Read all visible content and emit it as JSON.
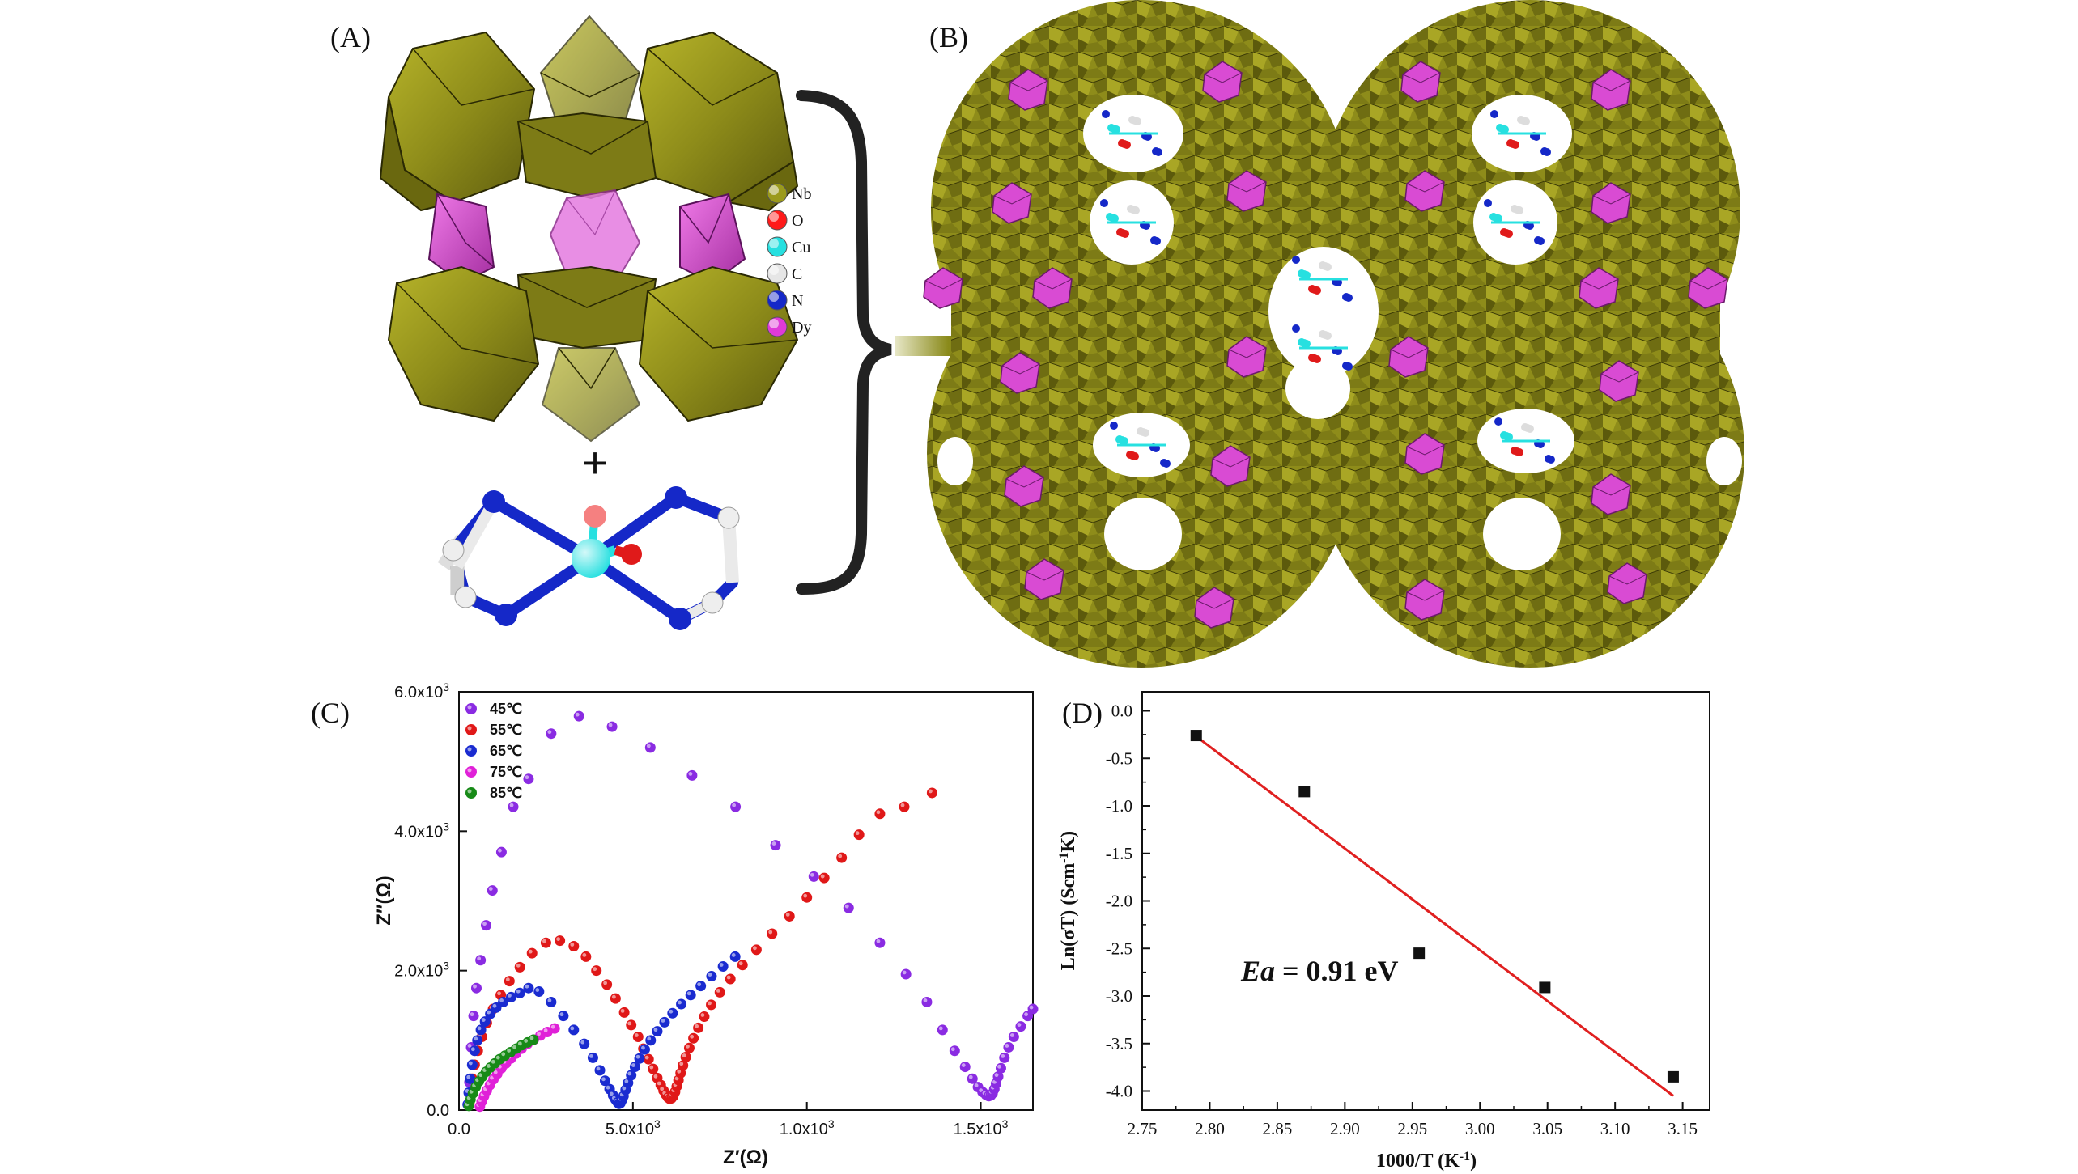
{
  "panels": {
    "A": "(A)",
    "B": "(B)",
    "C": "(C)",
    "D": "(D)"
  },
  "panel_a": {
    "plus": "+",
    "legend": [
      {
        "label": "Nb",
        "color": "#9b9a1c"
      },
      {
        "label": "O",
        "color": "#ff1a1a"
      },
      {
        "label": "Cu",
        "color": "#27e0e0"
      },
      {
        "label": "C",
        "color": "#e6e6e6"
      },
      {
        "label": "N",
        "color": "#1528c8"
      },
      {
        "label": "Dy",
        "color": "#e03ad8"
      }
    ]
  },
  "colors": {
    "nb_polyhedra": "#8e8c1a",
    "dy_polyhedra": "#d94bd3",
    "arrow": "#8a8a1a"
  },
  "chart_data": [
    {
      "type": "scatter",
      "xlabel": "Z′(Ω)",
      "ylabel": "Z″(Ω)",
      "xlim": [
        0,
        16500
      ],
      "ylim": [
        0,
        6000
      ],
      "xticks": [
        {
          "value": 0,
          "label": "0.0"
        },
        {
          "value": 5000,
          "label": "5.0x10"
        },
        {
          "value": 10000,
          "label": "1.0x10"
        },
        {
          "value": 15000,
          "label": "1.5x10"
        }
      ],
      "xtick_exponent": "3",
      "yticks": [
        {
          "value": 0,
          "label": "0.0"
        },
        {
          "value": 2000,
          "label": "2.0x10"
        },
        {
          "value": 4000,
          "label": "4.0x10"
        },
        {
          "value": 6000,
          "label": "6.0x10"
        }
      ],
      "ytick_exponent": "3",
      "legend_position": "top-left",
      "series": [
        {
          "name": "45℃",
          "color": "#8a2be2",
          "x": [
            300,
            350,
            420,
            500,
            620,
            780,
            960,
            1220,
            1560,
            2000,
            2650,
            3450,
            4400,
            5500,
            6700,
            7950,
            9100,
            10200,
            11200,
            12100,
            12850,
            13450,
            13900,
            14250,
            14550,
            14760,
            14920,
            15050,
            15150,
            15230,
            15290,
            15340,
            15390,
            15440,
            15500,
            15580,
            15680,
            15800,
            15950,
            16150,
            16350,
            16500
          ],
          "y": [
            400,
            900,
            1350,
            1750,
            2150,
            2650,
            3150,
            3700,
            4350,
            4750,
            5400,
            5650,
            5500,
            5200,
            4800,
            4350,
            3800,
            3350,
            2900,
            2400,
            1950,
            1550,
            1150,
            850,
            620,
            450,
            330,
            260,
            220,
            200,
            210,
            240,
            300,
            380,
            480,
            600,
            750,
            900,
            1050,
            1200,
            1350,
            1450
          ]
        },
        {
          "name": "55℃",
          "color": "#e01818",
          "x": [
            300,
            330,
            380,
            450,
            540,
            660,
            800,
            980,
            1200,
            1450,
            1750,
            2100,
            2500,
            2900,
            3300,
            3650,
            3950,
            4250,
            4500,
            4750,
            4950,
            5150,
            5300,
            5450,
            5580,
            5700,
            5800,
            5880,
            5950,
            6010,
            6060,
            6110,
            6160,
            6210,
            6260,
            6310,
            6370,
            6440,
            6520,
            6620,
            6740,
            6880,
            7050,
            7250,
            7500,
            7800,
            8150,
            8550,
            9000,
            9500,
            10000,
            10500,
            11000,
            11500,
            12100,
            12800,
            13600
          ],
          "y": [
            100,
            250,
            450,
            650,
            850,
            1050,
            1250,
            1450,
            1650,
            1850,
            2050,
            2250,
            2400,
            2430,
            2350,
            2200,
            2000,
            1800,
            1600,
            1400,
            1220,
            1050,
            880,
            730,
            590,
            460,
            360,
            280,
            220,
            180,
            160,
            170,
            200,
            260,
            340,
            430,
            530,
            640,
            760,
            890,
            1030,
            1180,
            1340,
            1510,
            1690,
            1880,
            2080,
            2300,
            2530,
            2780,
            3050,
            3330,
            3620,
            3950,
            4250,
            4350,
            4550
          ]
        },
        {
          "name": "65℃",
          "color": "#1a2bd0",
          "x": [
            250,
            280,
            320,
            380,
            450,
            530,
            630,
            750,
            900,
            1070,
            1270,
            1500,
            1750,
            2000,
            2300,
            2650,
            3000,
            3300,
            3600,
            3850,
            4050,
            4200,
            4330,
            4430,
            4500,
            4560,
            4600,
            4640,
            4680,
            4730,
            4790,
            4860,
            4950,
            5060,
            5190,
            5340,
            5510,
            5700,
            5910,
            6140,
            6390,
            6660,
            6950,
            7260,
            7590,
            7940
          ],
          "y": [
            80,
            250,
            450,
            650,
            850,
            1000,
            1150,
            1270,
            1380,
            1470,
            1550,
            1620,
            1680,
            1750,
            1700,
            1550,
            1350,
            1150,
            950,
            750,
            570,
            420,
            300,
            210,
            150,
            110,
            90,
            100,
            140,
            200,
            290,
            390,
            500,
            620,
            740,
            870,
            1000,
            1130,
            1260,
            1390,
            1520,
            1650,
            1780,
            1920,
            2060,
            2200
          ]
        },
        {
          "name": "75℃",
          "color": "#e020d8",
          "x": [
            600,
            650,
            720,
            800,
            890,
            990,
            1100,
            1220,
            1350,
            1490,
            1640,
            1800,
            1970,
            2150,
            2340,
            2540,
            2750
          ],
          "y": [
            50,
            120,
            200,
            280,
            360,
            440,
            520,
            600,
            670,
            740,
            810,
            880,
            950,
            1010,
            1070,
            1120,
            1170
          ]
        },
        {
          "name": "85℃",
          "color": "#178a17",
          "x": [
            280,
            330,
            400,
            480,
            570,
            670,
            780,
            900,
            1030,
            1170,
            1320,
            1480,
            1640,
            1800,
            1970,
            2140
          ],
          "y": [
            60,
            150,
            240,
            330,
            410,
            480,
            550,
            610,
            670,
            730,
            780,
            830,
            880,
            930,
            970,
            1010
          ]
        }
      ]
    },
    {
      "type": "scatter",
      "xlabel": "1000/T (K",
      "xlabel_sup": "-1",
      "xlabel_end": ")",
      "ylabel": "Ln(σT) (Scm",
      "ylabel_sup": "-1",
      "ylabel_end": "K)",
      "xlim": [
        2.75,
        3.17
      ],
      "ylim": [
        -4.2,
        0.2
      ],
      "xticks": [
        "2.75",
        "2.80",
        "2.85",
        "2.90",
        "2.95",
        "3.00",
        "3.05",
        "3.10",
        "3.15"
      ],
      "yticks": [
        "0.0",
        "-0.5",
        "-1.0",
        "-1.5",
        "-2.0",
        "-2.5",
        "-3.0",
        "-3.5",
        "-4.0"
      ],
      "points": {
        "x": [
          2.79,
          2.87,
          2.955,
          3.048,
          3.143
        ],
        "y": [
          -0.26,
          -0.85,
          -2.55,
          -2.91,
          -3.85
        ]
      },
      "fit_line": {
        "x": [
          2.79,
          3.143
        ],
        "y": [
          -0.27,
          -4.05
        ],
        "color": "#e02020"
      },
      "annotation": {
        "italic": "Ea",
        "rest": " = 0.91 eV"
      }
    }
  ]
}
